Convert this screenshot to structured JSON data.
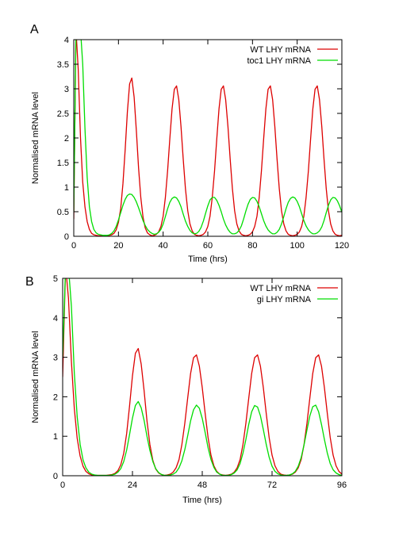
{
  "chart_data": [
    {
      "type": "line",
      "panel_label": "A",
      "xlabel": "Time (hrs)",
      "ylabel": "Normalised mRNA level",
      "xlim": [
        0,
        120
      ],
      "ylim": [
        0,
        4
      ],
      "xticks": [
        0,
        20,
        40,
        60,
        80,
        100,
        120
      ],
      "yticks": [
        0,
        0.5,
        1,
        1.5,
        2,
        2.5,
        3,
        3.5,
        4
      ],
      "grid": false,
      "legend_position": "top-right",
      "series": [
        {
          "name": "WT LHY mRNA",
          "color": "#dd0000",
          "x": [
            0,
            1,
            2,
            3,
            4,
            5,
            6,
            7,
            8,
            9,
            10,
            11,
            12,
            13,
            14,
            15,
            16,
            17,
            18,
            19,
            20,
            21,
            22,
            23,
            24,
            25,
            26,
            27,
            28,
            29,
            30,
            31,
            32,
            33,
            34,
            35,
            36,
            37,
            38,
            39,
            40,
            41,
            42,
            43,
            44,
            45,
            46,
            47,
            48,
            49,
            50,
            51,
            52,
            53,
            54,
            55,
            56,
            57,
            58,
            59,
            60,
            61,
            62,
            63,
            64,
            65,
            66,
            67,
            68,
            69,
            70,
            71,
            72,
            73,
            74,
            75,
            76,
            77,
            78,
            79,
            80,
            81,
            82,
            83,
            84,
            85,
            86,
            87,
            88,
            89,
            90,
            91,
            92,
            93,
            94,
            95,
            96,
            97,
            98,
            99,
            100,
            101,
            102,
            103,
            104,
            105,
            106,
            107,
            108,
            109,
            110,
            111,
            112,
            113,
            114,
            115,
            116,
            117,
            118,
            119,
            120
          ],
          "y": [
            0.35,
            4.2,
            3.4,
            2.0,
            1.1,
            0.6,
            0.3,
            0.14,
            0.06,
            0.03,
            0.02,
            0.01,
            0.01,
            0.01,
            0.01,
            0.01,
            0.02,
            0.03,
            0.06,
            0.13,
            0.28,
            0.57,
            1.07,
            1.76,
            2.53,
            3.1,
            3.22,
            2.83,
            2.15,
            1.39,
            0.79,
            0.39,
            0.17,
            0.07,
            0.03,
            0.01,
            0.02,
            0.04,
            0.09,
            0.2,
            0.41,
            0.79,
            1.33,
            1.98,
            2.59,
            2.99,
            3.06,
            2.78,
            2.23,
            1.57,
            0.97,
            0.52,
            0.25,
            0.11,
            0.04,
            0.02,
            0.01,
            0.02,
            0.04,
            0.09,
            0.2,
            0.41,
            0.79,
            1.33,
            1.98,
            2.59,
            2.99,
            3.06,
            2.78,
            2.23,
            1.57,
            0.97,
            0.52,
            0.25,
            0.11,
            0.04,
            0.02,
            0.01,
            0.02,
            0.04,
            0.09,
            0.2,
            0.41,
            0.79,
            1.33,
            1.98,
            2.59,
            2.99,
            3.06,
            2.78,
            2.23,
            1.57,
            0.97,
            0.52,
            0.25,
            0.11,
            0.04,
            0.02,
            0.01,
            0.02,
            0.04,
            0.09,
            0.2,
            0.41,
            0.79,
            1.33,
            1.98,
            2.59,
            2.99,
            3.06,
            2.78,
            2.23,
            1.57,
            0.97,
            0.52,
            0.25,
            0.11,
            0.04,
            0.02,
            0.01,
            0.02
          ]
        },
        {
          "name": "toc1 LHY mRNA",
          "color": "#00dd00",
          "x": [
            0,
            1,
            2,
            3,
            4,
            5,
            6,
            7,
            8,
            9,
            10,
            11,
            12,
            13,
            14,
            15,
            16,
            17,
            18,
            19,
            20,
            21,
            22,
            23,
            24,
            25,
            26,
            27,
            28,
            29,
            30,
            31,
            32,
            33,
            34,
            35,
            36,
            37,
            38,
            39,
            40,
            41,
            42,
            43,
            44,
            45,
            46,
            47,
            48,
            49,
            50,
            51,
            52,
            53,
            54,
            55,
            56,
            57,
            58,
            59,
            60,
            61,
            62,
            63,
            64,
            65,
            66,
            67,
            68,
            69,
            70,
            71,
            72,
            73,
            74,
            75,
            76,
            77,
            78,
            79,
            80,
            81,
            82,
            83,
            84,
            85,
            86,
            87,
            88,
            89,
            90,
            91,
            92,
            93,
            94,
            95,
            96,
            97,
            98,
            99,
            100,
            101,
            102,
            103,
            104,
            105,
            106,
            107,
            108,
            109,
            110,
            111,
            112,
            113,
            114,
            115,
            116,
            117,
            118,
            119,
            120
          ],
          "y": [
            0.5,
            4.2,
            4.2,
            4.2,
            3.5,
            2.2,
            1.2,
            0.6,
            0.3,
            0.14,
            0.07,
            0.04,
            0.03,
            0.02,
            0.02,
            0.02,
            0.03,
            0.06,
            0.11,
            0.2,
            0.33,
            0.48,
            0.63,
            0.75,
            0.83,
            0.86,
            0.85,
            0.79,
            0.7,
            0.58,
            0.45,
            0.32,
            0.22,
            0.14,
            0.09,
            0.06,
            0.04,
            0.05,
            0.08,
            0.14,
            0.25,
            0.4,
            0.56,
            0.69,
            0.77,
            0.8,
            0.78,
            0.71,
            0.6,
            0.45,
            0.31,
            0.2,
            0.12,
            0.07,
            0.05,
            0.06,
            0.1,
            0.18,
            0.31,
            0.47,
            0.62,
            0.74,
            0.79,
            0.79,
            0.73,
            0.63,
            0.5,
            0.35,
            0.23,
            0.14,
            0.08,
            0.05,
            0.05,
            0.07,
            0.12,
            0.21,
            0.35,
            0.51,
            0.65,
            0.75,
            0.79,
            0.78,
            0.71,
            0.6,
            0.46,
            0.32,
            0.21,
            0.13,
            0.08,
            0.05,
            0.05,
            0.08,
            0.14,
            0.25,
            0.4,
            0.56,
            0.69,
            0.77,
            0.8,
            0.78,
            0.71,
            0.6,
            0.46,
            0.32,
            0.21,
            0.13,
            0.08,
            0.05,
            0.05,
            0.07,
            0.11,
            0.19,
            0.32,
            0.48,
            0.63,
            0.74,
            0.79,
            0.78,
            0.72,
            0.62,
            0.49
          ]
        }
      ]
    },
    {
      "type": "line",
      "panel_label": "B",
      "xlabel": "Time (hrs)",
      "ylabel": "Normalised mRNA level",
      "xlim": [
        0,
        96
      ],
      "ylim": [
        0,
        5
      ],
      "xticks": [
        0,
        24,
        48,
        72,
        96
      ],
      "yticks": [
        0,
        1,
        2,
        3,
        4,
        5
      ],
      "grid": false,
      "legend_position": "top-right",
      "series": [
        {
          "name": "WT LHY mRNA",
          "color": "#dd0000",
          "x": [
            0,
            1,
            2,
            3,
            4,
            5,
            6,
            7,
            8,
            9,
            10,
            11,
            12,
            13,
            14,
            15,
            16,
            17,
            18,
            19,
            20,
            21,
            22,
            23,
            24,
            25,
            26,
            27,
            28,
            29,
            30,
            31,
            32,
            33,
            34,
            35,
            36,
            37,
            38,
            39,
            40,
            41,
            42,
            43,
            44,
            45,
            46,
            47,
            48,
            49,
            50,
            51,
            52,
            53,
            54,
            55,
            56,
            57,
            58,
            59,
            60,
            61,
            62,
            63,
            64,
            65,
            66,
            67,
            68,
            69,
            70,
            71,
            72,
            73,
            74,
            75,
            76,
            77,
            78,
            79,
            80,
            81,
            82,
            83,
            84,
            85,
            86,
            87,
            88,
            89,
            90,
            91,
            92,
            93,
            94,
            95,
            96
          ],
          "y": [
            2.5,
            5.3,
            4.5,
            2.9,
            1.7,
            0.95,
            0.5,
            0.24,
            0.11,
            0.05,
            0.02,
            0.01,
            0.01,
            0.01,
            0.01,
            0.01,
            0.02,
            0.03,
            0.06,
            0.13,
            0.28,
            0.57,
            1.07,
            1.76,
            2.53,
            3.1,
            3.22,
            2.83,
            2.15,
            1.39,
            0.79,
            0.39,
            0.17,
            0.07,
            0.03,
            0.01,
            0.02,
            0.04,
            0.09,
            0.2,
            0.41,
            0.79,
            1.33,
            1.98,
            2.59,
            2.99,
            3.06,
            2.78,
            2.23,
            1.57,
            0.97,
            0.52,
            0.25,
            0.11,
            0.04,
            0.02,
            0.01,
            0.02,
            0.04,
            0.09,
            0.2,
            0.41,
            0.79,
            1.33,
            1.98,
            2.59,
            2.99,
            3.06,
            2.78,
            2.23,
            1.57,
            0.97,
            0.52,
            0.25,
            0.11,
            0.04,
            0.02,
            0.01,
            0.02,
            0.04,
            0.09,
            0.2,
            0.41,
            0.79,
            1.33,
            1.98,
            2.59,
            2.99,
            3.06,
            2.78,
            2.23,
            1.57,
            0.97,
            0.52,
            0.25,
            0.11,
            0.04
          ]
        },
        {
          "name": "gi LHY mRNA",
          "color": "#00dd00",
          "x": [
            0,
            1,
            2,
            3,
            4,
            5,
            6,
            7,
            8,
            9,
            10,
            11,
            12,
            13,
            14,
            15,
            16,
            17,
            18,
            19,
            20,
            21,
            22,
            23,
            24,
            25,
            26,
            27,
            28,
            29,
            30,
            31,
            32,
            33,
            34,
            35,
            36,
            37,
            38,
            39,
            40,
            41,
            42,
            43,
            44,
            45,
            46,
            47,
            48,
            49,
            50,
            51,
            52,
            53,
            54,
            55,
            56,
            57,
            58,
            59,
            60,
            61,
            62,
            63,
            64,
            65,
            66,
            67,
            68,
            69,
            70,
            71,
            72,
            73,
            74,
            75,
            76,
            77,
            78,
            79,
            80,
            81,
            82,
            83,
            84,
            85,
            86,
            87,
            88,
            89,
            90,
            91,
            92,
            93,
            94,
            95,
            96
          ],
          "y": [
            3.0,
            5.3,
            5.3,
            4.3,
            2.6,
            1.5,
            0.8,
            0.4,
            0.2,
            0.09,
            0.04,
            0.02,
            0.01,
            0.01,
            0.01,
            0.01,
            0.01,
            0.02,
            0.04,
            0.09,
            0.18,
            0.36,
            0.65,
            1.04,
            1.46,
            1.78,
            1.88,
            1.72,
            1.4,
            1.0,
            0.64,
            0.36,
            0.18,
            0.08,
            0.03,
            0.01,
            0.01,
            0.02,
            0.04,
            0.09,
            0.2,
            0.38,
            0.66,
            1.02,
            1.39,
            1.67,
            1.79,
            1.71,
            1.45,
            1.09,
            0.71,
            0.41,
            0.21,
            0.09,
            0.04,
            0.01,
            0.01,
            0.01,
            0.03,
            0.07,
            0.15,
            0.31,
            0.57,
            0.92,
            1.31,
            1.62,
            1.78,
            1.74,
            1.52,
            1.17,
            0.79,
            0.47,
            0.24,
            0.11,
            0.05,
            0.02,
            0.01,
            0.01,
            0.02,
            0.05,
            0.11,
            0.24,
            0.46,
            0.78,
            1.16,
            1.52,
            1.75,
            1.79,
            1.62,
            1.3,
            0.92,
            0.57,
            0.31,
            0.15,
            0.07,
            0.03,
            0.01
          ]
        }
      ]
    }
  ]
}
